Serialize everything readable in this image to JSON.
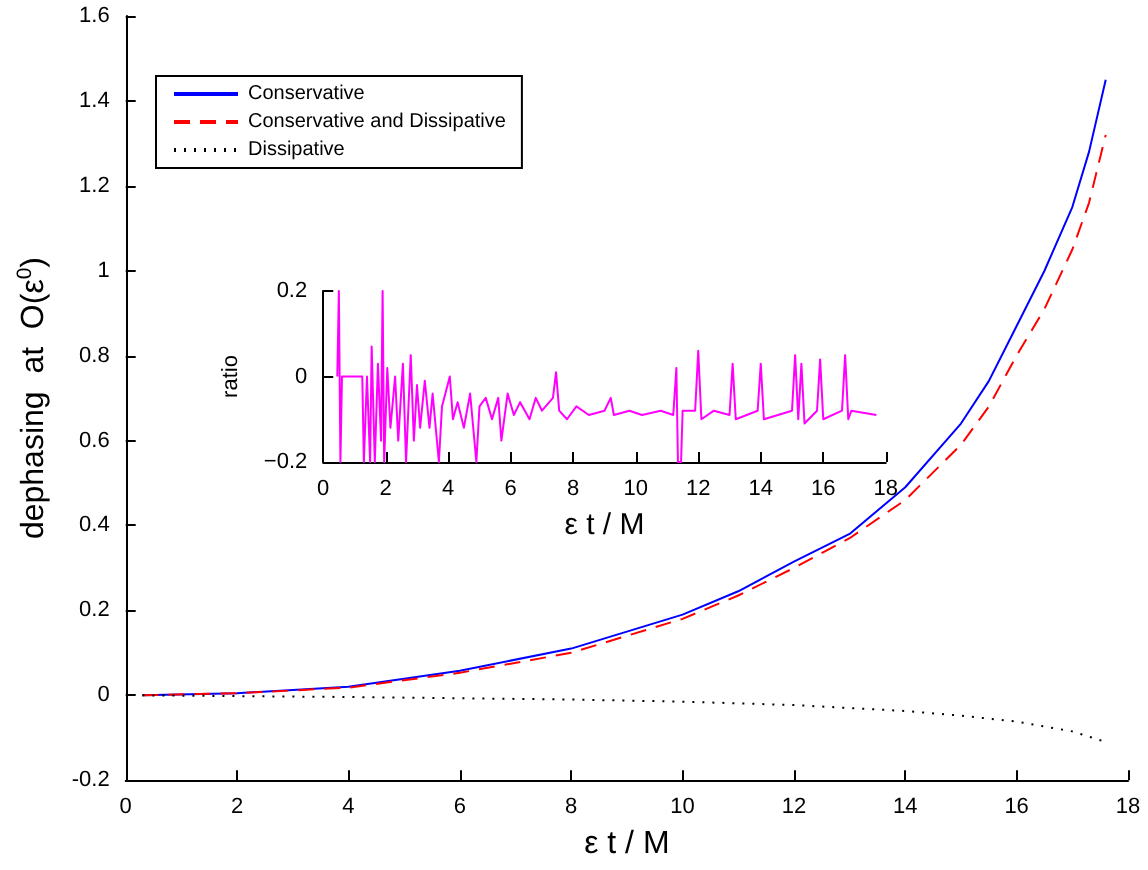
{
  "chart_data": [
    {
      "type": "line",
      "xlabel": "ε t / M",
      "ylabel": "dephasing  at  O(ε$^{0}$)",
      "xlim": [
        0,
        18
      ],
      "xticks": [
        0,
        2,
        4,
        6,
        8,
        10,
        12,
        14,
        16,
        18
      ],
      "ylim": [
        -0.2,
        1.6
      ],
      "yticks": [
        -0.2,
        0,
        0.2,
        0.4,
        0.6,
        0.8,
        1,
        1.2,
        1.4,
        1.6
      ],
      "grid": false,
      "legend": "top left",
      "series": [
        {
          "name": "Conservative",
          "color": "#0000ff",
          "line_style": "solid",
          "x": [
            0.3,
            2,
            4,
            6,
            8,
            10,
            11,
            12,
            13,
            14,
            15,
            15.5,
            16,
            16.5,
            17,
            17.3,
            17.6
          ],
          "values": [
            0,
            0.005,
            0.02,
            0.058,
            0.11,
            0.19,
            0.245,
            0.315,
            0.38,
            0.49,
            0.64,
            0.74,
            0.87,
            1.0,
            1.15,
            1.28,
            1.45
          ]
        },
        {
          "name": "Conservative and Dissipative",
          "color": "#ff0000",
          "line_style": "dashed",
          "x": [
            0.3,
            2,
            4,
            6,
            8,
            10,
            11,
            12,
            13,
            14,
            15,
            15.5,
            16,
            16.5,
            17,
            17.3,
            17.6
          ],
          "values": [
            0,
            0.005,
            0.018,
            0.053,
            0.1,
            0.18,
            0.235,
            0.3,
            0.37,
            0.46,
            0.59,
            0.68,
            0.8,
            0.91,
            1.05,
            1.16,
            1.32
          ]
        },
        {
          "name": "Dissipative",
          "color": "#000000",
          "line_style": "dotted",
          "x": [
            0.3,
            2,
            4,
            6,
            8,
            10,
            12,
            14,
            15,
            16,
            17,
            17.6
          ],
          "values": [
            0,
            -0.002,
            -0.004,
            -0.007,
            -0.01,
            -0.015,
            -0.023,
            -0.037,
            -0.048,
            -0.062,
            -0.085,
            -0.11
          ]
        }
      ]
    },
    {
      "type": "line",
      "xlabel": "ε t / M",
      "ylabel": "ratio",
      "xlim": [
        0,
        18
      ],
      "xticks": [
        0,
        2,
        4,
        6,
        8,
        10,
        12,
        14,
        16,
        18
      ],
      "ylim": [
        -0.2,
        0.2
      ],
      "yticks": [
        {
          "value": -0.2,
          "label": "−0.2"
        },
        0,
        0.2
      ],
      "grid": false,
      "series": [
        {
          "color": "#ff00ff",
          "line_style": "solid",
          "x": [
            0.45,
            0.5,
            0.55,
            0.6,
            1.25,
            1.3,
            1.4,
            1.5,
            1.55,
            1.65,
            1.75,
            1.85,
            1.9,
            1.95,
            2.05,
            2.15,
            2.3,
            2.4,
            2.55,
            2.65,
            2.8,
            2.9,
            3.0,
            3.1,
            3.25,
            3.4,
            3.5,
            3.7,
            3.8,
            4.05,
            4.15,
            4.3,
            4.5,
            4.7,
            4.9,
            5.0,
            5.2,
            5.4,
            5.6,
            5.7,
            5.9,
            6.1,
            6.3,
            6.6,
            6.8,
            7.0,
            7.35,
            7.45,
            7.55,
            7.8,
            8.1,
            8.5,
            9.0,
            9.2,
            9.3,
            9.8,
            10.2,
            10.8,
            11.2,
            11.3,
            11.35,
            11.45,
            11.5,
            11.9,
            12.0,
            12.1,
            12.5,
            13.0,
            13.1,
            13.2,
            13.9,
            14.0,
            14.1,
            15.0,
            15.1,
            15.2,
            15.3,
            15.4,
            15.8,
            15.9,
            16.0,
            16.6,
            16.7,
            16.8,
            16.9,
            17.7
          ],
          "values": [
            0,
            0.2,
            -0.2,
            0,
            0,
            -0.2,
            0,
            -0.2,
            0.07,
            -0.2,
            0.03,
            -0.15,
            0.2,
            -0.2,
            0.02,
            -0.12,
            0,
            -0.15,
            0.03,
            -0.2,
            0.05,
            -0.15,
            -0.02,
            -0.12,
            -0.01,
            -0.12,
            -0.04,
            -0.2,
            -0.07,
            0,
            -0.1,
            -0.06,
            -0.12,
            -0.04,
            -0.2,
            -0.07,
            -0.05,
            -0.1,
            -0.05,
            -0.15,
            -0.04,
            -0.09,
            -0.06,
            -0.1,
            -0.05,
            -0.08,
            -0.05,
            0.01,
            -0.08,
            -0.1,
            -0.07,
            -0.09,
            -0.08,
            -0.05,
            -0.09,
            -0.08,
            -0.09,
            -0.08,
            -0.09,
            0.02,
            -0.2,
            -0.2,
            -0.08,
            -0.08,
            0.06,
            -0.1,
            -0.08,
            -0.09,
            0.03,
            -0.1,
            -0.08,
            0.03,
            -0.1,
            -0.08,
            0.05,
            -0.1,
            0.03,
            -0.11,
            -0.08,
            0.04,
            -0.1,
            -0.08,
            0.05,
            -0.1,
            -0.08,
            -0.09
          ]
        }
      ]
    }
  ]
}
